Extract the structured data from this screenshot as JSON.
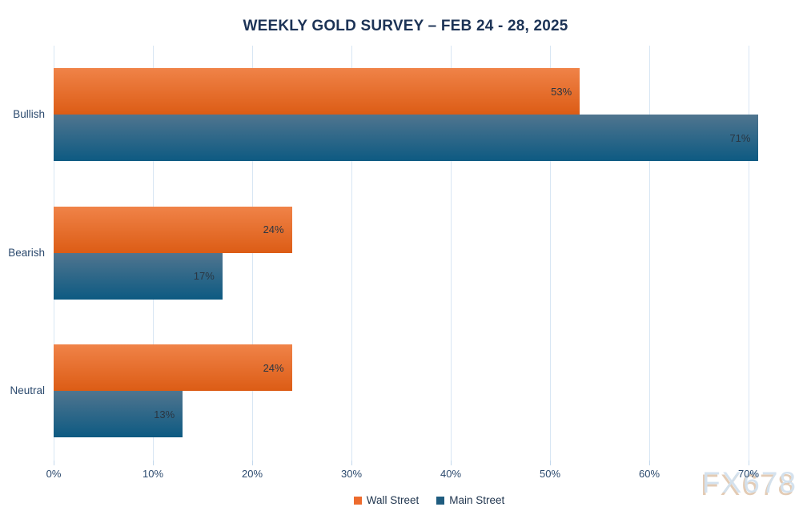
{
  "title": "WEEKLY GOLD SURVEY – FEB 24 - 28, 2025",
  "watermark": {
    "text": "FX678"
  },
  "colors": {
    "wall_street_top": "#f08348",
    "wall_street_bottom": "#dc5c15",
    "wall_street_legend": "#ed6b2d",
    "main_street_top": "#50758f",
    "main_street_bottom": "#0d5a82",
    "main_street_legend": "#1f5c7f",
    "gridline": "#d8e6f4",
    "title_text": "#1c3356",
    "axis_text": "#2c4a6e",
    "data_label_text": "#2a3642"
  },
  "chart_data": {
    "type": "bar",
    "orientation": "horizontal",
    "title": "WEEKLY GOLD SURVEY – FEB 24 - 28, 2025",
    "categories": [
      "Bullish",
      "Bearish",
      "Neutral"
    ],
    "series": [
      {
        "name": "Wall Street",
        "values": [
          53,
          24,
          24
        ],
        "color_top": "#f08348",
        "color_bottom": "#dc5c15",
        "legend_color": "#ed6b2d"
      },
      {
        "name": "Main Street",
        "values": [
          71,
          17,
          13
        ],
        "color_top": "#50758f",
        "color_bottom": "#0d5a82",
        "legend_color": "#1f5c7f"
      }
    ],
    "data_labels": [
      "53%",
      "71%",
      "24%",
      "17%",
      "24%",
      "13%"
    ],
    "value_suffix": "%",
    "x_ticks": [
      "0%",
      "10%",
      "20%",
      "30%",
      "40%",
      "50%",
      "60%",
      "70%"
    ],
    "xlim": [
      0,
      70
    ],
    "xlabel": "",
    "ylabel": "",
    "grid": true,
    "legend_position": "bottom",
    "data_label_position": "inside-end"
  }
}
